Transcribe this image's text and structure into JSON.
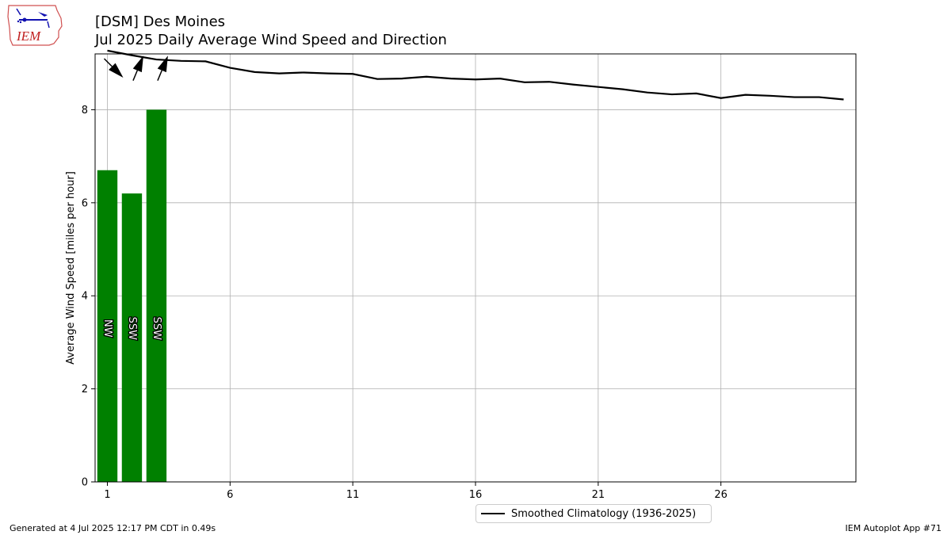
{
  "logo": {
    "text": "IEM",
    "icon": "iem-iowa-logo"
  },
  "title_line1": "[DSM] Des Moines",
  "title_line2": "Jul 2025 Daily Average Wind Speed and Direction",
  "footer_left": "Generated at 4 Jul 2025 12:17 PM CDT in 0.49s",
  "footer_right": "IEM Autoplot App #71",
  "colors": {
    "bar": "#008000",
    "climatology_line": "#000000",
    "grid": "#b0b0b0"
  },
  "chart_data": {
    "type": "bar",
    "title": "[DSM] Des Moines\nJul 2025 Daily Average Wind Speed and Direction",
    "xlabel": "",
    "ylabel": "Average Wind Speed [miles per hour]",
    "xlim": [
      0.5,
      31.5
    ],
    "ylim": [
      0,
      9.2
    ],
    "x_ticks": [
      1,
      6,
      11,
      16,
      21,
      26
    ],
    "y_ticks": [
      0,
      2,
      4,
      6,
      8
    ],
    "grid": true,
    "legend_placement": "below-right",
    "bars": {
      "days": [
        1,
        2,
        3
      ],
      "values": [
        6.7,
        6.2,
        8.0
      ],
      "direction_labels": [
        "NW",
        "SSW",
        "SSW"
      ],
      "direction_deg": [
        315,
        202.5,
        202.5
      ]
    },
    "series": [
      {
        "name": "Smoothed Climatology (1936-2025)",
        "type": "line",
        "x": [
          1,
          2,
          3,
          4,
          5,
          6,
          7,
          8,
          9,
          10,
          11,
          12,
          13,
          14,
          15,
          16,
          17,
          18,
          19,
          20,
          21,
          22,
          23,
          24,
          25,
          26,
          27,
          28,
          29,
          30,
          31
        ],
        "values": [
          9.27,
          9.17,
          9.08,
          9.05,
          9.04,
          8.9,
          8.81,
          8.78,
          8.8,
          8.78,
          8.77,
          8.66,
          8.67,
          8.71,
          8.67,
          8.65,
          8.67,
          8.59,
          8.6,
          8.54,
          8.49,
          8.44,
          8.37,
          8.33,
          8.35,
          8.25,
          8.32,
          8.3,
          8.27,
          8.27,
          8.22
        ]
      }
    ]
  }
}
